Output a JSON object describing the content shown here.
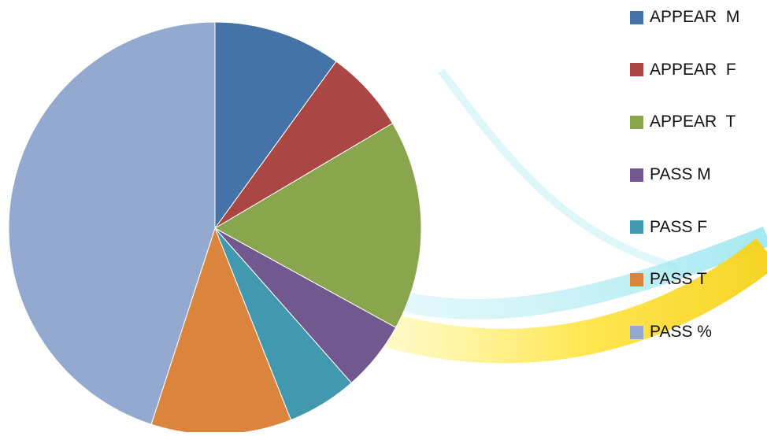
{
  "chart_data": {
    "type": "pie",
    "title": "",
    "series": [
      {
        "name": "APPEAR  M",
        "value": 10,
        "color": "#4572A7"
      },
      {
        "name": "APPEAR  F",
        "value": 6.5,
        "color": "#AA4643"
      },
      {
        "name": "APPEAR  T",
        "value": 16.5,
        "color": "#89A54E"
      },
      {
        "name": "PASS M",
        "value": 5.5,
        "color": "#71588F"
      },
      {
        "name": "PASS F",
        "value": 5.5,
        "color": "#4198AF"
      },
      {
        "name": "PASS T",
        "value": 11,
        "color": "#DB843D"
      },
      {
        "name": "PASS %",
        "value": 45,
        "color": "#93A9CF"
      }
    ],
    "legend_position": "right",
    "start_angle": "top, clockwise"
  }
}
